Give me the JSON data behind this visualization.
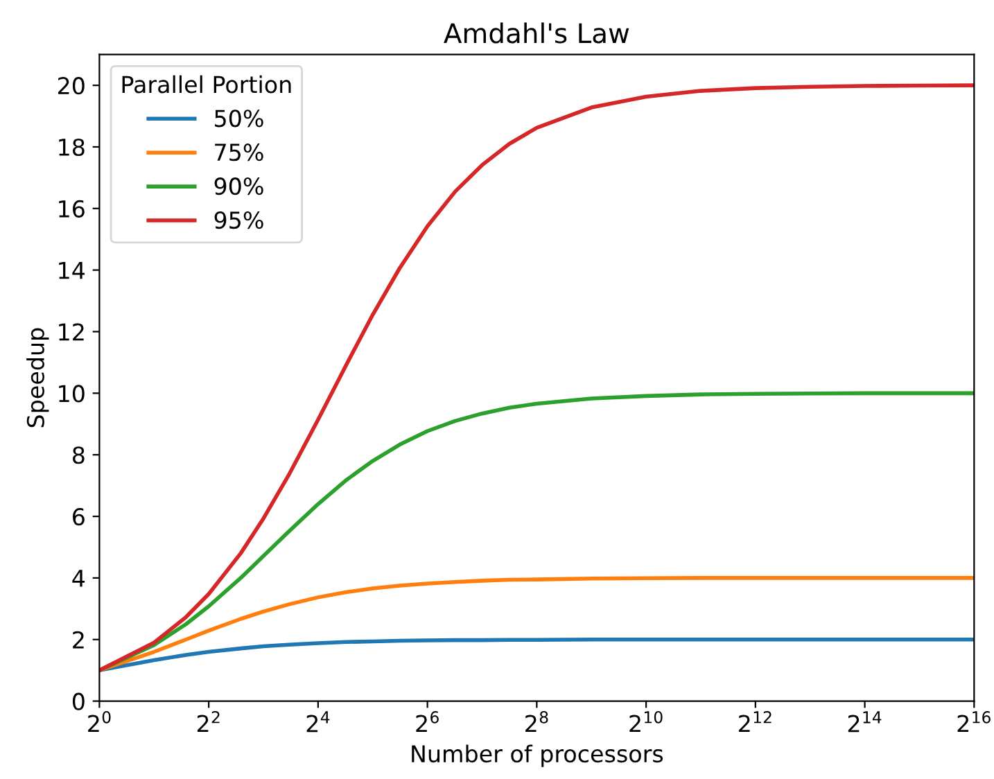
{
  "chart_data": {
    "type": "line",
    "title": "Amdahl's Law",
    "xlabel": "Number of processors",
    "ylabel": "Speedup",
    "legend_title": "Parallel Portion",
    "legend": "top left",
    "log": "x",
    "grid": false,
    "x": [
      1,
      2,
      3,
      4,
      6,
      8,
      11,
      16,
      23,
      32,
      45,
      64,
      91,
      128,
      181,
      256,
      512,
      1024,
      2048,
      4096,
      8192,
      16384,
      32768,
      65536
    ],
    "xlim": [
      1,
      65536
    ],
    "xticks": [
      {
        "value": 1,
        "label": "2$^{0}$"
      },
      {
        "value": 4,
        "label": "2$^{2}$"
      },
      {
        "value": 16,
        "label": "2$^{4}$"
      },
      {
        "value": 64,
        "label": "2$^{6}$"
      },
      {
        "value": 256,
        "label": "2$^{8}$"
      },
      {
        "value": 1024,
        "label": "2$^{10}$"
      },
      {
        "value": 4096,
        "label": "2$^{12}$"
      },
      {
        "value": 16384,
        "label": "2$^{14}$"
      },
      {
        "value": 65536,
        "label": "2$^{16}$"
      }
    ],
    "ylim": [
      0,
      21
    ],
    "yticks": [
      0,
      2,
      4,
      6,
      8,
      10,
      12,
      14,
      16,
      18,
      20
    ],
    "series": [
      {
        "name": "50%",
        "color": "#1f77b4",
        "values": [
          1,
          1.33,
          1.5,
          1.6,
          1.71,
          1.78,
          1.83,
          1.88,
          1.92,
          1.94,
          1.96,
          1.97,
          1.98,
          1.98,
          1.99,
          1.99,
          2.0,
          2.0,
          2.0,
          2.0,
          2.0,
          2.0,
          2.0,
          2.0
        ]
      },
      {
        "name": "75%",
        "color": "#ff7f0e",
        "values": [
          1,
          1.6,
          2.0,
          2.29,
          2.67,
          2.91,
          3.14,
          3.37,
          3.54,
          3.66,
          3.75,
          3.82,
          3.87,
          3.91,
          3.94,
          3.95,
          3.98,
          3.99,
          4.0,
          4.0,
          4.0,
          4.0,
          4.0,
          4.0
        ]
      },
      {
        "name": "90%",
        "color": "#2ca02c",
        "values": [
          1,
          1.82,
          2.5,
          3.08,
          4.0,
          4.71,
          5.5,
          6.4,
          7.19,
          7.8,
          8.33,
          8.77,
          9.1,
          9.34,
          9.53,
          9.66,
          9.83,
          9.91,
          9.96,
          9.98,
          9.99,
          10.0,
          10.0,
          10.0
        ]
      },
      {
        "name": "95%",
        "color": "#d62728",
        "values": [
          1,
          1.9,
          2.73,
          3.48,
          4.8,
          5.93,
          7.33,
          9.14,
          10.95,
          12.55,
          14.06,
          15.42,
          16.55,
          17.41,
          18.1,
          18.62,
          19.28,
          19.63,
          19.82,
          19.91,
          19.95,
          19.98,
          19.99,
          20.0
        ]
      }
    ]
  }
}
